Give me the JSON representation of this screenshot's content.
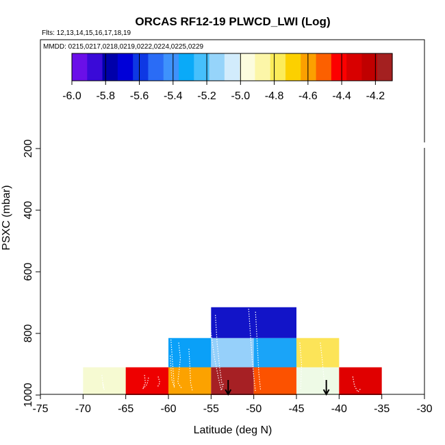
{
  "chart_data": {
    "type": "heatmap",
    "title": "ORCAS RF12-19 PLWCD_LWI (Log)",
    "flights_label": "Flts: 12,13,14,15,16,17,18,19",
    "mmdd_label": "MMDD: 0215,0217,0218,0219,0222,0224,0225,0229",
    "xlabel": "Latitude (deg N)",
    "ylabel": "PSXC (mbar)",
    "xlim": [
      -75,
      -30
    ],
    "ylim": [
      1000,
      200
    ],
    "x_ticks": [
      -75,
      -70,
      -65,
      -60,
      -55,
      -50,
      -45,
      -40,
      -35,
      -30
    ],
    "x_tick_labels": [
      "-75",
      "-70",
      "-65",
      "-60",
      "-55",
      "-50",
      "-45",
      "-40",
      "-35",
      "-30"
    ],
    "y_ticks": [
      200,
      400,
      600,
      800,
      1000
    ],
    "y_tick_labels": [
      "200",
      "400",
      "600",
      "800",
      "1000"
    ],
    "colorbar": {
      "ticks": [
        -6.0,
        -5.8,
        -5.6,
        -5.4,
        -5.2,
        -5.0,
        -4.8,
        -4.6,
        -4.4,
        -4.2
      ],
      "tick_labels": [
        "-6.0",
        "-5.8",
        "-5.6",
        "-5.4",
        "-5.2",
        "-5.0",
        "-4.8",
        "-4.6",
        "-4.4",
        "-4.2"
      ],
      "range": [
        -6.0,
        -4.1
      ],
      "colors": [
        "#6a0fe8",
        "#3a0ad8",
        "#0000aa",
        "#0000d8",
        "#0e38e4",
        "#2a6cf6",
        "#3e92fc",
        "#0aaaf8",
        "#46c0fc",
        "#96d4fa",
        "#d2ecfc",
        "#fcfcde",
        "#fcf6a8",
        "#fcec5a",
        "#fcd000",
        "#fca000",
        "#fc6000",
        "#fc0000",
        "#d80000",
        "#c00000",
        "#a42020"
      ]
    },
    "cells": [
      {
        "x0": -70,
        "x1": -65,
        "p0": 910,
        "p1": 1000,
        "color": "#f6fad2"
      },
      {
        "x0": -65,
        "x1": -60,
        "p0": 910,
        "p1": 1000,
        "color": "#ee0000"
      },
      {
        "x0": -60,
        "x1": -55,
        "p0": 910,
        "p1": 1000,
        "color": "#fca200"
      },
      {
        "x0": -55,
        "x1": -50,
        "p0": 910,
        "p1": 1000,
        "color": "#a62024"
      },
      {
        "x0": -50,
        "x1": -45,
        "p0": 910,
        "p1": 1000,
        "color": "#fc5200"
      },
      {
        "x0": -45,
        "x1": -40,
        "p0": 910,
        "p1": 1000,
        "color": "#eefae6"
      },
      {
        "x0": -40,
        "x1": -35,
        "p0": 910,
        "p1": 1000,
        "color": "#e00000"
      },
      {
        "x0": -60,
        "x1": -55,
        "p0": 815,
        "p1": 910,
        "color": "#0aa0f8"
      },
      {
        "x0": -55,
        "x1": -50,
        "p0": 815,
        "p1": 910,
        "color": "#96d0fa"
      },
      {
        "x0": -50,
        "x1": -45,
        "p0": 815,
        "p1": 910,
        "color": "#1aa4f8"
      },
      {
        "x0": -45,
        "x1": -40,
        "p0": 815,
        "p1": 910,
        "color": "#fce458"
      },
      {
        "x0": -55,
        "x1": -45,
        "p0": 715,
        "p1": 815,
        "color": "#1214c8"
      }
    ],
    "markers": [
      {
        "type": "down-arrow",
        "x": -53,
        "p": 1000
      },
      {
        "type": "down-arrow",
        "x": -41.5,
        "p": 1000
      }
    ],
    "tracks": [
      {
        "lat": [
          -67.8,
          -67.6,
          -67.7,
          -67.5
        ],
        "p": [
          935,
          980,
          960,
          985
        ]
      },
      {
        "lat": [
          -62.8,
          -62.7,
          -63.0,
          -62.5,
          -62.3
        ],
        "p": [
          935,
          960,
          980,
          965,
          940
        ]
      },
      {
        "lat": [
          -61.2,
          -61.0,
          -61.3
        ],
        "p": [
          940,
          960,
          975
        ]
      },
      {
        "lat": [
          -59.7,
          -59.5,
          -59.3,
          -59.6,
          -59.8
        ],
        "p": [
          820,
          900,
          975,
          950,
          870
        ]
      },
      {
        "lat": [
          -58.8,
          -58.6,
          -58.9,
          -58.4
        ],
        "p": [
          830,
          880,
          960,
          980
        ]
      },
      {
        "lat": [
          -57.6,
          -57.5,
          -57.4,
          -57.2
        ],
        "p": [
          850,
          900,
          960,
          985
        ]
      },
      {
        "lat": [
          -55.3,
          -55.0,
          -54.6,
          -54.1,
          -53.8,
          -53.5
        ],
        "p": [
          720,
          800,
          880,
          950,
          985,
          960
        ]
      },
      {
        "lat": [
          -54.5,
          -54.3,
          -54.0,
          -53.7
        ],
        "p": [
          740,
          830,
          910,
          970
        ]
      },
      {
        "lat": [
          -50.6,
          -50.4,
          -50.2,
          -50.0,
          -49.8
        ],
        "p": [
          720,
          800,
          880,
          940,
          990
        ]
      },
      {
        "lat": [
          -49.8,
          -49.6,
          -49.4,
          -49.2
        ],
        "p": [
          730,
          830,
          930,
          985
        ]
      },
      {
        "lat": [
          -44.6,
          -44.4,
          -44.5
        ],
        "p": [
          830,
          900,
          980
        ]
      },
      {
        "lat": [
          -42.2,
          -42.0,
          -41.8,
          -41.6
        ],
        "p": [
          830,
          880,
          940,
          980
        ]
      },
      {
        "lat": [
          -38.4,
          -38.2,
          -37.8,
          -37.5
        ],
        "p": [
          940,
          970,
          990,
          980
        ]
      }
    ]
  }
}
